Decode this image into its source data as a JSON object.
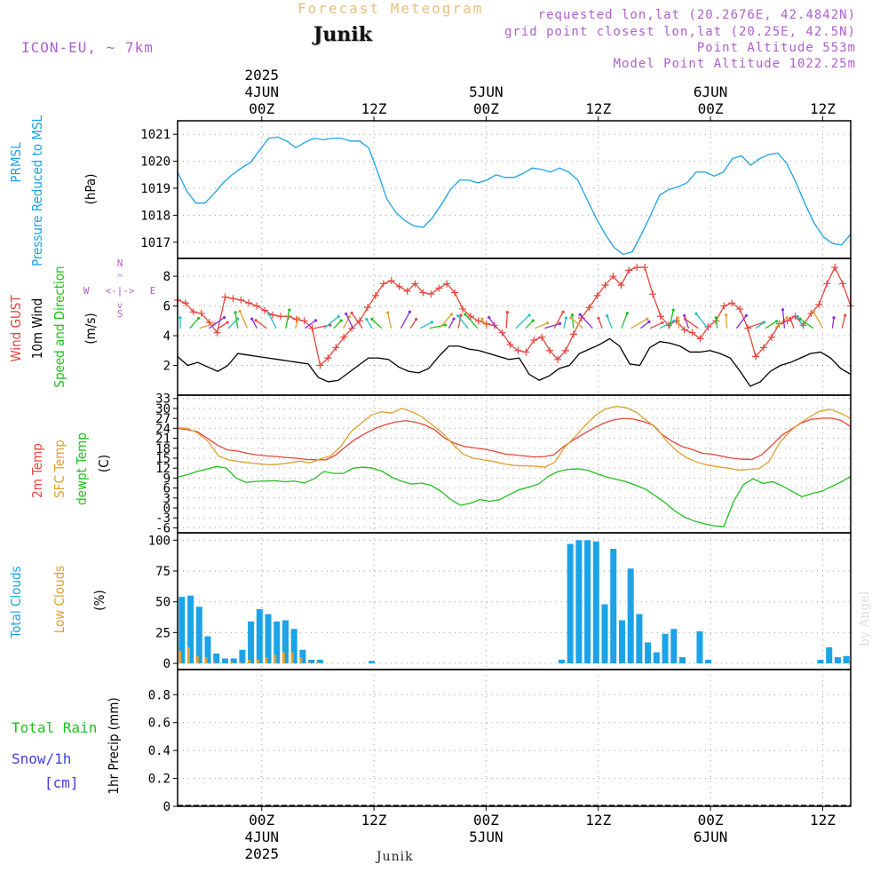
{
  "header": {
    "title": "Forecast Meteogram",
    "station": "Junik",
    "model": "ICON-EU, ~ 7km",
    "requested": "requested lon,lat (20.2676E, 42.4842N)",
    "grid_point": "grid point closest lon,lat (20.25E, 42.5N)",
    "point_altitude": "Point Altitude 553m",
    "model_altitude": "Model Point Altitude 1022.25m"
  },
  "footer": {
    "station": "Junik",
    "credit": "by Angel"
  },
  "colors": {
    "pressure": "#1aa3e8",
    "gust": "#e8453c",
    "wind": "#000000",
    "direction": "#1ec01e",
    "temp2m": "#e8453c",
    "sfc": "#e0a030",
    "dewpt": "#1ec01e",
    "total_clouds": "#1aa3e8",
    "low_clouds": "#e0a030",
    "rain": "#1ec01e",
    "snow": "#4040e0",
    "compass": "#b05fd0"
  },
  "chart_data": {
    "type": "meteogram",
    "time_axis": {
      "start": "2025-06-03T15:00Z",
      "end": "2025-06-06T15:00Z",
      "step_hours": 1,
      "top_labels": [
        {
          "hours": 9,
          "lines": [
            "2025",
            "4JUN",
            "00Z"
          ]
        },
        {
          "hours": 21,
          "lines": [
            "12Z"
          ]
        },
        {
          "hours": 33,
          "lines": [
            "5JUN",
            "00Z"
          ]
        },
        {
          "hours": 45,
          "lines": [
            "12Z"
          ]
        },
        {
          "hours": 57,
          "lines": [
            "6JUN",
            "00Z"
          ]
        },
        {
          "hours": 69,
          "lines": [
            "12Z"
          ]
        }
      ],
      "bottom_labels": [
        {
          "hours": 9,
          "lines": [
            "00Z",
            "4JUN",
            "2025"
          ]
        },
        {
          "hours": 21,
          "lines": [
            "12Z"
          ]
        },
        {
          "hours": 33,
          "lines": [
            "00Z",
            "5JUN"
          ]
        },
        {
          "hours": 45,
          "lines": [
            "12Z"
          ]
        },
        {
          "hours": 57,
          "lines": [
            "00Z",
            "6JUN"
          ]
        },
        {
          "hours": 69,
          "lines": [
            "12Z"
          ]
        }
      ]
    },
    "panels": [
      {
        "id": "pressure",
        "labels": [
          {
            "text": "PRMSL",
            "color": "#1aa3e8"
          },
          {
            "text": "Pressure Reduced to MSL",
            "color": "#1aa3e8"
          },
          {
            "text": "(hPa)",
            "color": "#000000"
          }
        ],
        "ylim": [
          1016.4,
          1021.5
        ],
        "yticks": [
          1017,
          1018,
          1019,
          1020,
          1021
        ],
        "series": [
          {
            "key": "prmsl",
            "color": "#1aa3e8",
            "values": [
              1019.6,
              1018.9,
              1018.45,
              1018.45,
              1018.8,
              1019.2,
              1019.5,
              1019.75,
              1019.95,
              1020.4,
              1020.85,
              1020.9,
              1020.75,
              1020.5,
              1020.7,
              1020.85,
              1020.8,
              1020.85,
              1020.85,
              1020.75,
              1020.75,
              1020.5,
              1019.6,
              1018.6,
              1018.1,
              1017.8,
              1017.6,
              1017.55,
              1017.9,
              1018.4,
              1018.95,
              1019.3,
              1019.3,
              1019.2,
              1019.3,
              1019.5,
              1019.4,
              1019.4,
              1019.55,
              1019.75,
              1019.7,
              1019.6,
              1019.75,
              1019.6,
              1019.3,
              1018.6,
              1017.9,
              1017.3,
              1016.8,
              1016.55,
              1016.65,
              1017.3,
              1018.0,
              1018.75,
              1018.95,
              1019.05,
              1019.2,
              1019.6,
              1019.6,
              1019.45,
              1019.6,
              1020.1,
              1020.2,
              1019.85,
              1020.1,
              1020.25,
              1020.3,
              1019.9,
              1019.2,
              1018.4,
              1017.7,
              1017.2,
              1016.95,
              1016.9,
              1017.3
            ]
          }
        ]
      },
      {
        "id": "wind",
        "labels": [
          {
            "text": "Wind GUST",
            "color": "#e8453c"
          },
          {
            "text": "10m Wind",
            "color": "#000000"
          },
          {
            "text": "Speed and Direction",
            "color": "#1ec01e"
          },
          {
            "text": "(m/s)",
            "color": "#000000"
          }
        ],
        "compass": {
          "n": "N",
          "s": "S",
          "w": "W",
          "e": "E",
          "glyph": "<-|->"
        },
        "ylim": [
          0,
          9.2
        ],
        "yticks": [
          2,
          4,
          6,
          8
        ],
        "series": [
          {
            "key": "gust",
            "color": "#e8453c",
            "marker": "+",
            "values": [
              6.4,
              6.2,
              5.6,
              5.5,
              4.9,
              4.2,
              6.6,
              6.5,
              6.4,
              6.2,
              6.0,
              5.7,
              5.4,
              5.3,
              5.3,
              5.1,
              5.0,
              4.5,
              2.0,
              2.5,
              3.2,
              3.9,
              4.5,
              5.0,
              5.9,
              6.7,
              7.5,
              7.7,
              7.3,
              7.0,
              7.5,
              6.9,
              6.8,
              7.2,
              7.5,
              6.9,
              5.8,
              5.3,
              5.0,
              4.8,
              4.7,
              4.2,
              3.4,
              3.0,
              2.9,
              3.7,
              3.9,
              3.0,
              2.4,
              3.0,
              4.1,
              5.2,
              5.9,
              6.7,
              7.4,
              8.0,
              7.4,
              8.4,
              8.6,
              8.6,
              6.8,
              5.3,
              4.7,
              5.0,
              4.4,
              4.2,
              3.8,
              4.6,
              5.0,
              6.0,
              6.2,
              5.8,
              4.5,
              2.6,
              3.2,
              3.9,
              4.8,
              5.0,
              5.3,
              4.7,
              5.5,
              6.1,
              7.5,
              8.6,
              7.5,
              6.0
            ]
          },
          {
            "key": "speed",
            "color": "#000000",
            "values": [
              2.6,
              2.0,
              2.2,
              1.9,
              1.6,
              2.0,
              2.8,
              2.7,
              2.6,
              2.5,
              2.4,
              2.3,
              2.2,
              2.1,
              1.2,
              0.9,
              1.0,
              1.5,
              2.0,
              2.5,
              2.5,
              2.4,
              1.9,
              1.6,
              1.5,
              1.8,
              2.6,
              3.3,
              3.3,
              3.1,
              3.0,
              2.8,
              2.6,
              2.4,
              2.5,
              1.4,
              1.0,
              1.3,
              1.8,
              2.0,
              2.8,
              3.1,
              3.4,
              3.8,
              3.3,
              2.1,
              2.0,
              3.2,
              3.6,
              3.5,
              3.3,
              2.9,
              2.9,
              3.0,
              2.8,
              2.5,
              1.6,
              0.6,
              0.9,
              1.6,
              2.0,
              2.2,
              2.5,
              2.8,
              2.9,
              2.5,
              1.8,
              1.4
            ]
          }
        ]
      },
      {
        "id": "temperature",
        "labels": [
          {
            "text": "2m Temp",
            "color": "#e8453c"
          },
          {
            "text": "SFC Temp",
            "color": "#e0a030"
          },
          {
            "text": "dewpt Temp",
            "color": "#1ec01e"
          },
          {
            "text": "(C)",
            "color": "#000000"
          }
        ],
        "ylim": [
          -7.5,
          34
        ],
        "yticks": [
          -6,
          -3,
          0,
          3,
          6,
          9,
          12,
          15,
          18,
          21,
          24,
          27,
          30,
          33
        ],
        "series": [
          {
            "key": "t2m",
            "color": "#e8453c",
            "values": [
              24,
              23.6,
              23,
              21,
              19,
              17.5,
              17.2,
              16.5,
              16,
              15.7,
              15.5,
              15.2,
              15,
              14.6,
              14.5,
              14.5,
              16,
              18.5,
              20.8,
              22.5,
              24,
              25.1,
              25.9,
              26.3,
              25.9,
              25,
              23.5,
              21,
              19.5,
              18.5,
              18.1,
              17.7,
              17.1,
              16.3,
              16,
              15.7,
              15.4,
              15.5,
              16,
              18.5,
              20.5,
              22.3,
              24,
              25.5,
              26.5,
              27,
              26.8,
              26.1,
              25,
              22,
              20,
              18.5,
              17.6,
              16.5,
              16.2,
              15.6,
              15,
              14.7,
              14.6,
              16,
              18.8,
              21.8,
              23.7,
              25.6,
              26.7,
              27,
              27.1,
              26.4,
              24.5
            ]
          },
          {
            "key": "sfc",
            "color": "#e0a030",
            "values": [
              24.2,
              24,
              22.5,
              20,
              15.7,
              14.5,
              14,
              13.6,
              13.3,
              13,
              13.2,
              13.6,
              14.1,
              13.6,
              14.8,
              15.7,
              18.5,
              23,
              25.5,
              28,
              29,
              28.6,
              30,
              29,
              27.4,
              25,
              22.5,
              19.2,
              16.2,
              15,
              14.5,
              14,
              13.3,
              12.8,
              12.7,
              12.6,
              12.3,
              13.8,
              18.5,
              21.5,
              25,
              28,
              29.9,
              30.6,
              30.2,
              28.8,
              26.3,
              24,
              20,
              17,
              15,
              13.7,
              12.9,
              12.4,
              12,
              11.4,
              11.6,
              11.8,
              14,
              19.5,
              23,
              25.5,
              27.5,
              29.2,
              29.7,
              28.6,
              27
            ]
          },
          {
            "key": "dewpt",
            "color": "#1ec01e",
            "values": [
              9.3,
              10,
              11,
              11.7,
              12.5,
              12,
              9,
              7.7,
              8,
              8.1,
              8.2,
              7.9,
              8.1,
              7.5,
              8.8,
              11,
              10.4,
              10.4,
              12,
              12.3,
              12,
              11,
              9.2,
              8,
              7.2,
              7.5,
              6.8,
              5,
              2.5,
              0.8,
              1.4,
              2.5,
              2,
              2.5,
              4,
              5.5,
              6.3,
              7.2,
              9.5,
              11,
              11.6,
              11.8,
              11.4,
              10.3,
              9.3,
              8.6,
              7.9,
              6.8,
              5.6,
              3.6,
              1.5,
              -1,
              -2.8,
              -4,
              -4.8,
              -5.4,
              -5.6,
              2,
              7,
              8.8,
              7.4,
              7.9,
              6.6,
              5,
              3.4,
              4.3,
              5,
              6.4,
              7.8,
              9.5
            ]
          }
        ]
      },
      {
        "id": "clouds",
        "type": "bar",
        "labels": [
          {
            "text": "Total Clouds",
            "color": "#1aa3e8"
          },
          {
            "text": "Low Clouds",
            "color": "#e0a030"
          },
          {
            "text": "(%)",
            "color": "#000000"
          }
        ],
        "ylim": [
          -5,
          106
        ],
        "yticks": [
          0,
          25,
          50,
          75,
          100
        ],
        "series": [
          {
            "key": "total",
            "color": "#1aa3e8",
            "values": [
              54,
              55,
              46,
              22,
              8,
              4,
              4,
              11,
              34,
              44,
              40,
              34,
              35,
              28,
              11,
              3,
              3,
              0,
              0,
              0,
              0,
              0,
              2,
              0,
              0,
              0,
              0,
              0,
              0,
              0,
              0,
              0,
              0,
              0,
              0,
              0,
              0,
              0,
              0,
              0,
              0,
              0,
              0,
              0,
              3,
              97,
              100,
              100,
              99,
              48,
              93,
              35,
              77,
              40,
              17,
              9,
              24,
              28,
              5,
              0,
              26,
              3,
              0,
              0,
              0,
              0,
              0,
              0,
              0,
              0,
              0,
              0,
              0,
              0,
              3,
              13,
              5,
              6
            ]
          },
          {
            "key": "low",
            "color": "#e0a030",
            "values": [
              10,
              13,
              6,
              5,
              1,
              0,
              1,
              1,
              3,
              3,
              5,
              7,
              9,
              9,
              5,
              1,
              1,
              0,
              0,
              0,
              0,
              0,
              0,
              0,
              0,
              0,
              0,
              0,
              0,
              0,
              0,
              0,
              0,
              0,
              0,
              0,
              0,
              0,
              0,
              0,
              0,
              0,
              0,
              0,
              0,
              0,
              0,
              0,
              0,
              0,
              0,
              0,
              0,
              0,
              0,
              0,
              0,
              0,
              0,
              0,
              0,
              0,
              0,
              0,
              0,
              0,
              0,
              0,
              0,
              0,
              0,
              0,
              0,
              0,
              0,
              0,
              0,
              0
            ]
          }
        ]
      },
      {
        "id": "precip",
        "type": "bar",
        "labels": [
          {
            "text": "Total  Rain",
            "color": "#1ec01e"
          },
          {
            "text": "Snow/1h",
            "color": "#4040e0"
          },
          {
            "text": "[cm]",
            "color": "#4040e0"
          },
          {
            "text": "1hr Precip (mm)",
            "color": "#000000"
          }
        ],
        "ylim": [
          0,
          0.98
        ],
        "yticks": [
          0,
          0.2,
          0.4,
          0.6,
          0.8
        ],
        "ytick_labels": [
          "0",
          "0.2",
          "0.4",
          "0.6",
          "0.8"
        ],
        "series": [
          {
            "key": "rain",
            "color": "#1ec01e",
            "values": []
          },
          {
            "key": "snow",
            "color": "#4040e0",
            "values": []
          }
        ]
      }
    ]
  }
}
